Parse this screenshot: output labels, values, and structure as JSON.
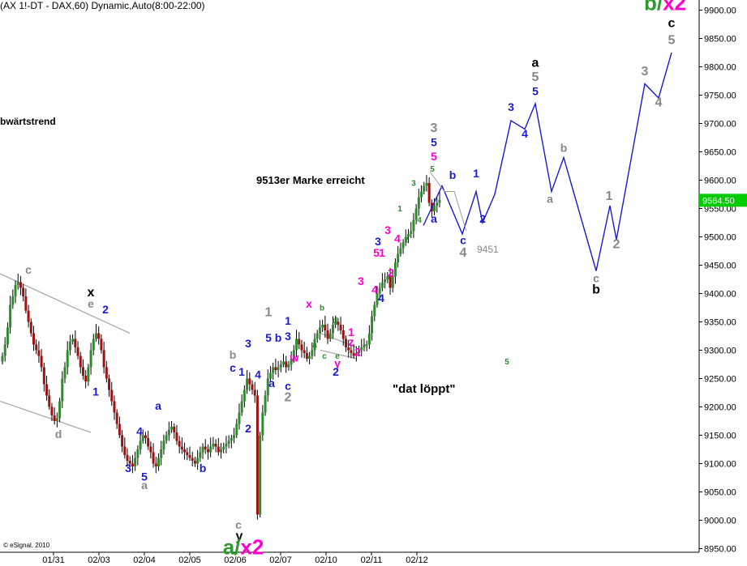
{
  "header": {
    "title": "(AX 1!-DT - DAX,60) Dynamic,Auto(8:00-22:00)"
  },
  "copyright": "© eSignal, 2010",
  "annotations": {
    "trend": "bwärtstrend",
    "marke": "9513er Marke erreicht",
    "loeppt": "\"dat löppt\"",
    "level_9451": "9451"
  },
  "colors": {
    "up": "#2e8b2e",
    "down": "#a01010",
    "wick": "#000000",
    "projection": "#1a1ad0",
    "projection_thin": "#999999",
    "trendline": "#aaaaaa",
    "price_tag": "#00cc00",
    "axis": "#000000"
  },
  "chart_data": {
    "type": "candlestick",
    "title": "(AX 1!-DT - DAX,60) Dynamic,Auto(8:00-22:00)",
    "y_axis": {
      "position": "right",
      "ylim": [
        8925,
        9925
      ],
      "ticks": [
        8950,
        9000,
        9050,
        9100,
        9150,
        9200,
        9250,
        9300,
        9350,
        9400,
        9450,
        9500,
        9550,
        9600,
        9650,
        9700,
        9750,
        9800,
        9850,
        9900
      ]
    },
    "x_axis": {
      "tick_labels": [
        "01/31",
        "02/03",
        "02/04",
        "02/05",
        "02/06",
        "02/07",
        "02/10",
        "02/11",
        "02/12"
      ]
    },
    "last_price": "9564.50",
    "closes": [
      9290,
      9310,
      9340,
      9380,
      9395,
      9415,
      9420,
      9410,
      9395,
      9370,
      9350,
      9330,
      9310,
      9300,
      9290,
      9270,
      9240,
      9220,
      9200,
      9185,
      9175,
      9180,
      9210,
      9250,
      9270,
      9300,
      9315,
      9320,
      9305,
      9290,
      9270,
      9255,
      9245,
      9270,
      9300,
      9320,
      9330,
      9320,
      9300,
      9270,
      9250,
      9230,
      9210,
      9190,
      9170,
      9150,
      9130,
      9115,
      9105,
      9100,
      9095,
      9110,
      9125,
      9140,
      9150,
      9145,
      9130,
      9120,
      9100,
      9095,
      9110,
      9125,
      9140,
      9150,
      9160,
      9165,
      9155,
      9140,
      9130,
      9125,
      9120,
      9115,
      9110,
      9105,
      9100,
      9110,
      9120,
      9130,
      9125,
      9120,
      9130,
      9135,
      9130,
      9120,
      9125,
      9130,
      9135,
      9140,
      9145,
      9150,
      9170,
      9190,
      9210,
      9230,
      9250,
      9240,
      9230,
      9220,
      9010,
      9150,
      9190,
      9220,
      9250,
      9260,
      9270,
      9265,
      9270,
      9275,
      9280,
      9270,
      9275,
      9285,
      9300,
      9320,
      9310,
      9300,
      9295,
      9285,
      9290,
      9300,
      9320,
      9330,
      9340,
      9345,
      9335,
      9320,
      9330,
      9345,
      9350,
      9345,
      9335,
      9320,
      9305,
      9300,
      9295,
      9290,
      9295,
      9300,
      9305,
      9310,
      9310,
      9330,
      9360,
      9380,
      9400,
      9410,
      9420,
      9425,
      9430,
      9410,
      9430,
      9455,
      9470,
      9480,
      9490,
      9500,
      9505,
      9510,
      9530,
      9550,
      9570,
      9580,
      9590,
      9595,
      9560,
      9545,
      9555,
      9560,
      9565
    ],
    "projection": {
      "series": [
        {
          "name": "",
          "points": [
            [
              522,
              9520
            ],
            [
              545,
              9590
            ],
            [
              570,
              9505
            ],
            [
              587,
              9580
            ],
            [
              595,
              9525
            ],
            [
              610,
              9575
            ],
            [
              630,
              9705
            ],
            [
              647,
              9690
            ],
            [
              660,
              9735
            ],
            [
              680,
              9580
            ],
            [
              695,
              9640
            ],
            [
              735,
              9440
            ],
            [
              752,
              9555
            ],
            [
              760,
              9495
            ],
            [
              795,
              9770
            ],
            [
              812,
              9745
            ],
            [
              828,
              9825
            ]
          ]
        },
        {
          "name": "",
          "points": [
            [
              530,
              9615
            ],
            [
              548,
              9580
            ],
            [
              560,
              9580
            ],
            [
              575,
              9510
            ]
          ]
        }
      ]
    },
    "trendlines": [
      {
        "from": [
          0,
          9435
        ],
        "to": [
          160,
          9330
        ]
      },
      {
        "from": [
          0,
          9210
        ],
        "to": [
          112,
          9155
        ]
      },
      {
        "from": [
          395,
          9330
        ],
        "to": [
          440,
          9305
        ]
      },
      {
        "from": [
          395,
          9300
        ],
        "to": [
          440,
          9285
        ]
      }
    ],
    "wave_labels": [
      {
        "text": "c",
        "color": "#888888",
        "x": 35,
        "y": 9435
      },
      {
        "text": "x",
        "color": "#000000",
        "x": 112,
        "y": 9395
      },
      {
        "text": "e",
        "color": "#888888",
        "x": 112,
        "y": 9375
      },
      {
        "text": "2",
        "color": "#1a1ad0",
        "x": 130,
        "y": 9365
      },
      {
        "text": "1",
        "color": "#1a1ad0",
        "x": 118,
        "y": 9220
      },
      {
        "text": "d",
        "color": "#888888",
        "x": 72,
        "y": 9145
      },
      {
        "text": "a",
        "color": "#1a1ad0",
        "x": 195,
        "y": 9195
      },
      {
        "text": "4",
        "color": "#1a1ad0",
        "x": 172,
        "y": 9150
      },
      {
        "text": "3",
        "color": "#1a1ad0",
        "x": 158,
        "y": 9085
      },
      {
        "text": "5",
        "color": "#1a1ad0",
        "x": 178,
        "y": 9070
      },
      {
        "text": "a",
        "color": "#888888",
        "x": 178,
        "y": 9055
      },
      {
        "text": "b",
        "color": "#1a1ad0",
        "x": 250,
        "y": 9085
      },
      {
        "text": "b",
        "color": "#888888",
        "x": 287,
        "y": 9285
      },
      {
        "text": "c",
        "color": "#1a1ad0",
        "x": 287,
        "y": 9262
      },
      {
        "text": "1",
        "color": "#1a1ad0",
        "x": 298,
        "y": 9255
      },
      {
        "text": "2",
        "color": "#1a1ad0",
        "x": 306,
        "y": 9155
      },
      {
        "text": "c",
        "color": "#888888",
        "x": 294,
        "y": 8985
      },
      {
        "text": "y",
        "color": "#000000",
        "x": 295,
        "y": 8965
      },
      {
        "text": "3",
        "color": "#1a1ad0",
        "x": 306,
        "y": 9305
      },
      {
        "text": "4",
        "color": "#1a1ad0",
        "x": 318,
        "y": 9250
      },
      {
        "text": "a",
        "color": "#1a1ad0",
        "x": 335,
        "y": 9235
      },
      {
        "text": "1",
        "color": "#888888",
        "x": 331,
        "y": 9360
      },
      {
        "text": "5",
        "color": "#1a1ad0",
        "x": 331,
        "y": 9315
      },
      {
        "text": "b",
        "color": "#1a1ad0",
        "x": 343,
        "y": 9315
      },
      {
        "text": "1",
        "color": "#1a1ad0",
        "x": 355,
        "y": 9345
      },
      {
        "text": "3",
        "color": "#1a1ad0",
        "x": 355,
        "y": 9318
      },
      {
        "text": "w",
        "color": "#ff00cc",
        "x": 363,
        "y": 9280
      },
      {
        "text": "c",
        "color": "#1a1ad0",
        "x": 355,
        "y": 9230
      },
      {
        "text": "2",
        "color": "#888888",
        "x": 355,
        "y": 9210
      },
      {
        "text": "x",
        "color": "#ff00cc",
        "x": 381,
        "y": 9375
      },
      {
        "text": "b",
        "color": "#2e8b2e",
        "x": 397,
        "y": 9370
      },
      {
        "text": "d",
        "color": "#2e8b2e",
        "x": 413,
        "y": 9348
      },
      {
        "text": "a",
        "color": "#2e8b2e",
        "x": 388,
        "y": 9305
      },
      {
        "text": "c",
        "color": "#2e8b2e",
        "x": 400,
        "y": 9285
      },
      {
        "text": "e",
        "color": "#2e8b2e",
        "x": 416,
        "y": 9285
      },
      {
        "text": "y",
        "color": "#ff00cc",
        "x": 416,
        "y": 9270
      },
      {
        "text": "z",
        "color": "#ff00cc",
        "x": 433,
        "y": 9308
      },
      {
        "text": "1",
        "color": "#ff00cc",
        "x": 433,
        "y": 9325
      },
      {
        "text": "2",
        "color": "#ff00cc",
        "x": 441,
        "y": 9290
      },
      {
        "text": "2",
        "color": "#1a1ad0",
        "x": 414,
        "y": 9255
      },
      {
        "text": "3",
        "color": "#ff00cc",
        "x": 445,
        "y": 9415
      },
      {
        "text": "4",
        "color": "#1a1ad0",
        "x": 470,
        "y": 9385
      },
      {
        "text": "4",
        "color": "#ff00cc",
        "x": 462,
        "y": 9400
      },
      {
        "text": "2",
        "color": "#ff00cc",
        "x": 482,
        "y": 9430
      },
      {
        "text": "5",
        "color": "#ff00cc",
        "x": 464,
        "y": 9465
      },
      {
        "text": "1",
        "color": "#ff00cc",
        "x": 471,
        "y": 9465
      },
      {
        "text": "3",
        "color": "#1a1ad0",
        "x": 466,
        "y": 9485
      },
      {
        "text": "3",
        "color": "#ff00cc",
        "x": 478,
        "y": 9505
      },
      {
        "text": "4",
        "color": "#ff00cc",
        "x": 490,
        "y": 9490
      },
      {
        "text": "1",
        "color": "#2e8b2e",
        "x": 493,
        "y": 9545
      },
      {
        "text": "2",
        "color": "#2e8b2e",
        "x": 501,
        "y": 9490
      },
      {
        "text": "3",
        "color": "#2e8b2e",
        "x": 510,
        "y": 9590
      },
      {
        "text": "4",
        "color": "#2e8b2e",
        "x": 517,
        "y": 9525
      },
      {
        "text": "5",
        "color": "#2e8b2e",
        "x": 533,
        "y": 9615
      },
      {
        "text": "5",
        "color": "#ff00cc",
        "x": 535,
        "y": 9635
      },
      {
        "text": "5",
        "color": "#1a1ad0",
        "x": 535,
        "y": 9660
      },
      {
        "text": "3",
        "color": "#888888",
        "x": 535,
        "y": 9685
      },
      {
        "text": "a",
        "color": "#1a1ad0",
        "x": 535,
        "y": 9525
      },
      {
        "text": "b",
        "color": "#1a1ad0",
        "x": 558,
        "y": 9602
      },
      {
        "text": "1",
        "color": "#1a1ad0",
        "x": 587,
        "y": 9605
      },
      {
        "text": "2",
        "color": "#1a1ad0",
        "x": 595,
        "y": 9525
      },
      {
        "text": "c",
        "color": "#1a1ad0",
        "x": 571,
        "y": 9487
      },
      {
        "text": "4",
        "color": "#888888",
        "x": 571,
        "y": 9465
      },
      {
        "text": "5",
        "color": "#2e8b2e",
        "x": 625,
        "y": 9275
      },
      {
        "text": "3",
        "color": "#1a1ad0",
        "x": 630,
        "y": 9722
      },
      {
        "text": "4",
        "color": "#1a1ad0",
        "x": 647,
        "y": 9675
      },
      {
        "text": "a",
        "color": "#000000",
        "x": 660,
        "y": 9800
      },
      {
        "text": "5",
        "color": "#888888",
        "x": 660,
        "y": 9775
      },
      {
        "text": "5",
        "color": "#1a1ad0",
        "x": 660,
        "y": 9750
      },
      {
        "text": "a",
        "color": "#888888",
        "x": 678,
        "y": 9560
      },
      {
        "text": "b",
        "color": "#888888",
        "x": 695,
        "y": 9650
      },
      {
        "text": "c",
        "color": "#888888",
        "x": 735,
        "y": 9420
      },
      {
        "text": "b",
        "color": "#000000",
        "x": 735,
        "y": 9400
      },
      {
        "text": "1",
        "color": "#888888",
        "x": 751,
        "y": 9565
      },
      {
        "text": "2",
        "color": "#888888",
        "x": 760,
        "y": 9480
      },
      {
        "text": "3",
        "color": "#888888",
        "x": 795,
        "y": 9785
      },
      {
        "text": "4",
        "color": "#888888",
        "x": 812,
        "y": 9730
      },
      {
        "text": "5",
        "color": "#888888",
        "x": 828,
        "y": 9840
      },
      {
        "text": "c",
        "color": "#000000",
        "x": 828,
        "y": 9870
      }
    ],
    "big_labels": [
      {
        "parts": [
          {
            "text": "b",
            "color": "#2e9a2e"
          },
          {
            "text": "/",
            "color": "#2e9a2e"
          },
          {
            "text": "x2",
            "color": "#ff00cc"
          }
        ],
        "x": 820,
        "y": 9900
      },
      {
        "parts": [
          {
            "text": "a",
            "color": "#2e9a2e"
          },
          {
            "text": "/",
            "color": "#2e9a2e"
          },
          {
            "text": "x2",
            "color": "#ff00cc"
          }
        ],
        "x": 300,
        "y": 8940
      }
    ]
  }
}
